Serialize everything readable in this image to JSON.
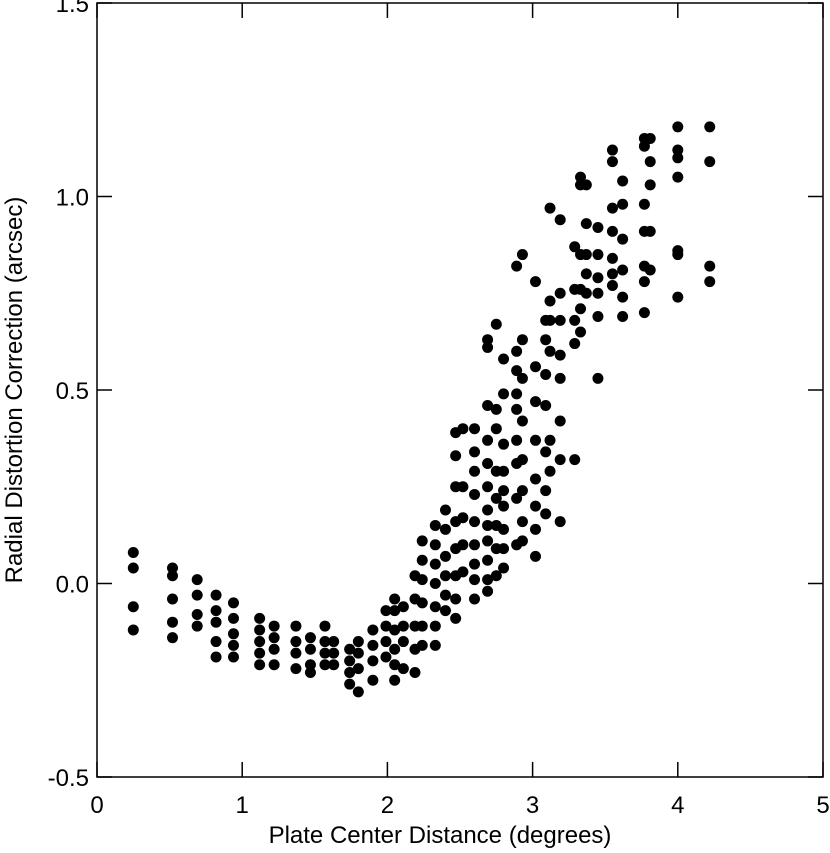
{
  "chart_data": {
    "type": "scatter",
    "xlabel": "Plate Center Distance (degrees)",
    "ylabel": "Radial Distortion Correction (arcsec)",
    "color": "#000000",
    "xlim": [
      0,
      5
    ],
    "xticks": [
      0,
      1,
      2,
      3,
      4,
      5
    ],
    "ylim": [
      -0.5,
      1.5
    ],
    "yticks": [
      {
        "value": -0.5,
        "label": "-0.5"
      },
      {
        "value": 0,
        "label": "0.0"
      },
      {
        "value": 0.5,
        "label": "0.5"
      },
      {
        "value": 1,
        "label": "1.0"
      },
      {
        "value": 1.5,
        "label": "1.5"
      }
    ],
    "x": [
      0.25,
      0.25,
      0.25,
      0.25,
      0.52,
      0.52,
      0.52,
      0.52,
      0.52,
      0.69,
      0.69,
      0.69,
      0.69,
      0.82,
      0.82,
      0.82,
      0.82,
      0.82,
      0.94,
      0.94,
      0.94,
      0.94,
      0.94,
      1.12,
      1.12,
      1.12,
      1.12,
      1.12,
      1.22,
      1.22,
      1.22,
      1.22,
      1.37,
      1.37,
      1.37,
      1.37,
      1.47,
      1.47,
      1.47,
      1.47,
      1.57,
      1.57,
      1.57,
      1.57,
      1.63,
      1.63,
      1.63,
      1.74,
      1.74,
      1.74,
      1.74,
      1.8,
      1.8,
      1.8,
      1.8,
      1.9,
      1.9,
      1.9,
      1.9,
      1.99,
      1.99,
      1.99,
      1.99,
      2.05,
      2.05,
      2.05,
      2.05,
      2.05,
      2.05,
      2.11,
      2.11,
      2.11,
      2.11,
      2.19,
      2.19,
      2.19,
      2.19,
      2.19,
      2.24,
      2.24,
      2.24,
      2.24,
      2.24,
      2.24,
      2.33,
      2.33,
      2.33,
      2.33,
      2.33,
      2.33,
      2.33,
      2.4,
      2.4,
      2.4,
      2.4,
      2.4,
      2.4,
      2.47,
      2.47,
      2.47,
      2.47,
      2.47,
      2.47,
      2.47,
      2.47,
      2.52,
      2.52,
      2.52,
      2.52,
      2.52,
      2.6,
      2.6,
      2.6,
      2.6,
      2.6,
      2.6,
      2.6,
      2.6,
      2.6,
      2.69,
      2.69,
      2.69,
      2.69,
      2.69,
      2.69,
      2.69,
      2.69,
      2.69,
      2.69,
      2.69,
      2.69,
      2.75,
      2.75,
      2.75,
      2.75,
      2.75,
      2.75,
      2.75,
      2.75,
      2.8,
      2.8,
      2.8,
      2.8,
      2.8,
      2.8,
      2.8,
      2.8,
      2.8,
      2.89,
      2.89,
      2.89,
      2.89,
      2.89,
      2.89,
      2.89,
      2.89,
      2.89,
      2.93,
      2.93,
      2.93,
      2.93,
      2.93,
      2.93,
      2.93,
      2.93,
      3.02,
      3.02,
      3.02,
      3.02,
      3.02,
      3.02,
      3.02,
      3.02,
      3.09,
      3.09,
      3.09,
      3.09,
      3.09,
      3.09,
      3.09,
      3.12,
      3.12,
      3.12,
      3.12,
      3.12,
      3.12,
      3.19,
      3.19,
      3.19,
      3.19,
      3.19,
      3.19,
      3.19,
      3.19,
      3.29,
      3.29,
      3.29,
      3.29,
      3.29,
      3.33,
      3.33,
      3.33,
      3.33,
      3.33,
      3.33,
      3.37,
      3.37,
      3.37,
      3.37,
      3.37,
      3.45,
      3.45,
      3.45,
      3.45,
      3.45,
      3.45,
      3.55,
      3.55,
      3.55,
      3.55,
      3.55,
      3.55,
      3.55,
      3.62,
      3.62,
      3.62,
      3.62,
      3.62,
      3.62,
      3.77,
      3.77,
      3.77,
      3.77,
      3.77,
      3.77,
      3.77,
      3.81,
      3.81,
      3.81,
      3.81,
      3.81,
      4.0,
      4.0,
      4.0,
      4.0,
      4.0,
      4.0,
      4.0,
      4.22,
      4.22,
      4.22,
      4.22
    ],
    "values": [
      0.08,
      0.04,
      -0.06,
      -0.12,
      0.04,
      0.02,
      -0.04,
      -0.1,
      -0.14,
      0.01,
      -0.03,
      -0.08,
      -0.11,
      -0.03,
      -0.07,
      -0.1,
      -0.15,
      -0.19,
      -0.05,
      -0.09,
      -0.13,
      -0.16,
      -0.19,
      -0.09,
      -0.12,
      -0.15,
      -0.18,
      -0.21,
      -0.11,
      -0.14,
      -0.17,
      -0.21,
      -0.11,
      -0.15,
      -0.18,
      -0.22,
      -0.14,
      -0.17,
      -0.21,
      -0.23,
      -0.11,
      -0.15,
      -0.18,
      -0.21,
      -0.15,
      -0.18,
      -0.21,
      -0.17,
      -0.2,
      -0.23,
      -0.26,
      -0.15,
      -0.18,
      -0.22,
      -0.28,
      -0.12,
      -0.16,
      -0.2,
      -0.25,
      -0.07,
      -0.11,
      -0.15,
      -0.19,
      -0.04,
      -0.07,
      -0.12,
      -0.17,
      -0.21,
      -0.25,
      -0.06,
      -0.11,
      -0.15,
      -0.22,
      0.02,
      -0.04,
      -0.11,
      -0.17,
      -0.23,
      0.11,
      0.06,
      0.01,
      -0.05,
      -0.11,
      -0.16,
      0.15,
      0.1,
      0.05,
      0.0,
      -0.06,
      -0.11,
      -0.16,
      0.19,
      0.14,
      0.07,
      0.02,
      -0.03,
      -0.07,
      0.39,
      0.33,
      0.25,
      0.16,
      0.09,
      0.02,
      -0.04,
      -0.09,
      0.4,
      0.25,
      0.17,
      0.1,
      0.03,
      0.4,
      0.34,
      0.29,
      0.23,
      0.16,
      0.1,
      0.05,
      0.01,
      -0.04,
      0.63,
      0.61,
      0.46,
      0.37,
      0.31,
      0.25,
      0.19,
      0.15,
      0.11,
      0.06,
      0.01,
      -0.02,
      0.67,
      0.45,
      0.4,
      0.29,
      0.22,
      0.15,
      0.09,
      0.02,
      0.58,
      0.49,
      0.36,
      0.29,
      0.24,
      0.2,
      0.14,
      0.09,
      0.04,
      0.82,
      0.6,
      0.55,
      0.49,
      0.45,
      0.37,
      0.31,
      0.22,
      0.1,
      0.85,
      0.63,
      0.53,
      0.42,
      0.32,
      0.24,
      0.16,
      0.11,
      0.78,
      0.56,
      0.47,
      0.37,
      0.27,
      0.2,
      0.14,
      0.07,
      0.68,
      0.63,
      0.54,
      0.46,
      0.34,
      0.24,
      0.18,
      0.97,
      0.73,
      0.68,
      0.6,
      0.37,
      0.29,
      0.94,
      0.75,
      0.68,
      0.59,
      0.53,
      0.42,
      0.32,
      0.16,
      0.87,
      0.76,
      0.68,
      0.62,
      0.32,
      1.05,
      1.03,
      0.85,
      0.76,
      0.71,
      0.65,
      1.03,
      0.93,
      0.85,
      0.8,
      0.75,
      0.92,
      0.85,
      0.79,
      0.75,
      0.69,
      0.53,
      1.12,
      1.09,
      0.97,
      0.91,
      0.84,
      0.8,
      0.77,
      1.04,
      0.98,
      0.89,
      0.81,
      0.74,
      0.69,
      1.15,
      1.13,
      0.98,
      0.91,
      0.82,
      0.78,
      0.7,
      1.15,
      1.09,
      1.03,
      0.91,
      0.81,
      1.18,
      1.12,
      1.1,
      1.05,
      0.86,
      0.85,
      0.74,
      1.18,
      1.09,
      0.82,
      0.78
    ]
  }
}
